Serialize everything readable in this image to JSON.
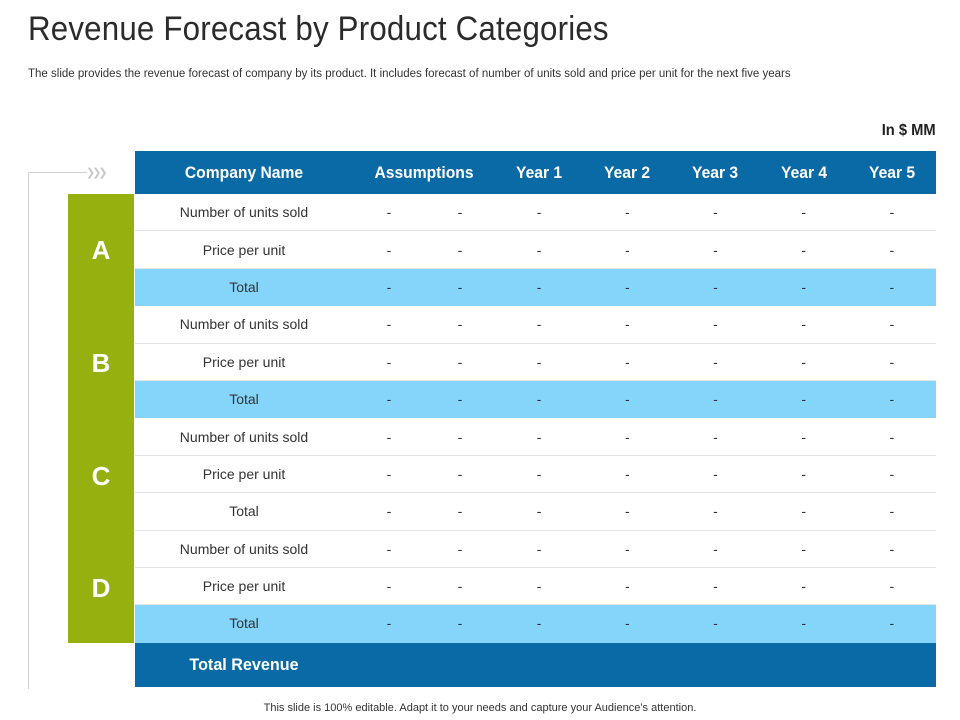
{
  "title": "Revenue Forecast by Product Categories",
  "subtitle": "The slide provides  the revenue  forecast of company by its product.  It includes forecast of number of units sold and price  per unit for the next five  years",
  "unit_label": "In $ MM",
  "table": {
    "headers": [
      "Company Name",
      "Assumptions",
      "Year 1",
      "Year 2",
      "Year 3",
      "Year 4",
      "Year 5"
    ],
    "groups": [
      {
        "label": "A",
        "rows": [
          {
            "name": "Number of units sold",
            "values": [
              "-",
              "-",
              "-",
              "-",
              "-",
              "-",
              "-"
            ]
          },
          {
            "name": "Price per unit",
            "values": [
              "-",
              "-",
              "-",
              "-",
              "-",
              "-",
              "-"
            ]
          },
          {
            "name": "Total",
            "values": [
              "-",
              "-",
              "-",
              "-",
              "-",
              "-",
              "-"
            ]
          }
        ]
      },
      {
        "label": "B",
        "rows": [
          {
            "name": "Number of units sold",
            "values": [
              "-",
              "-",
              "-",
              "-",
              "-",
              "-",
              "-"
            ]
          },
          {
            "name": "Price per unit",
            "values": [
              "-",
              "-",
              "-",
              "-",
              "-",
              "-",
              "-"
            ]
          },
          {
            "name": "Total",
            "values": [
              "-",
              "-",
              "-",
              "-",
              "-",
              "-",
              "-"
            ]
          }
        ]
      },
      {
        "label": "C",
        "rows": [
          {
            "name": "Number of units sold",
            "values": [
              "-",
              "-",
              "-",
              "-",
              "-",
              "-",
              "-"
            ]
          },
          {
            "name": "Price per unit",
            "values": [
              "-",
              "-",
              "-",
              "-",
              "-",
              "-",
              "-"
            ]
          },
          {
            "name": "Total",
            "values": [
              "-",
              "-",
              "-",
              "-",
              "-",
              "-",
              "-"
            ]
          }
        ]
      },
      {
        "label": "D",
        "rows": [
          {
            "name": "Number of units sold",
            "values": [
              "-",
              "-",
              "-",
              "-",
              "-",
              "-",
              "-"
            ]
          },
          {
            "name": "Price per unit",
            "values": [
              "-",
              "-",
              "-",
              "-",
              "-",
              "-",
              "-"
            ]
          },
          {
            "name": "Total",
            "values": [
              "-",
              "-",
              "-",
              "-",
              "-",
              "-",
              "-"
            ]
          }
        ]
      }
    ],
    "footer_label": "Total Revenue"
  },
  "footnote": "This slide is 100% editable. Adapt it to your needs and capture your Audience’s attention.",
  "colors": {
    "header_blue": "#0a6aa6",
    "highlight_light_blue": "#85d5fb",
    "group_green": "#95b00f"
  }
}
